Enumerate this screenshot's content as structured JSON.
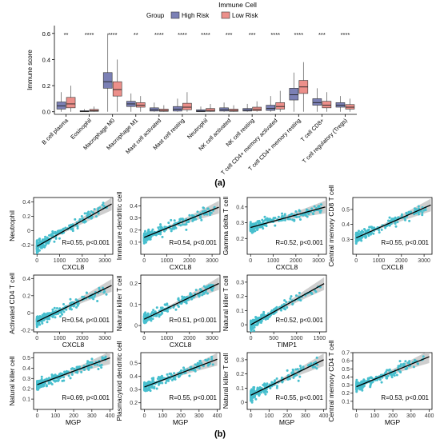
{
  "colors": {
    "high_risk": "#7b80b5",
    "low_risk": "#ec8f8a",
    "scatter": "#47bfce",
    "fit_line": "#000000",
    "ci_band": "#bdbdbd"
  },
  "panel_labels": {
    "a": "(a)",
    "b": "(b)"
  },
  "chart_data": [
    {
      "type": "box",
      "title": "Immune Cell",
      "legend": {
        "title": "Group",
        "entries": [
          "High Risk",
          "Low Risk"
        ],
        "placement": "top-center"
      },
      "ylabel": "Immune score",
      "ylim": [
        -0.02,
        0.66
      ],
      "yticks": [
        "0.0",
        "0.2",
        "0.4",
        "0.6"
      ],
      "ytick_values": [
        0.0,
        0.2,
        0.4,
        0.6
      ],
      "categories": [
        "B cell plasma",
        "Eosinophil",
        "Macrophage M0",
        "Macrophage M1",
        "Mast cell activated",
        "Mast cell resting",
        "Neutrophil",
        "NK cell activated",
        "NK cell resting",
        "T cell CD4+ memory activated",
        "T cell CD4+ memory resting",
        "T cell CD8+",
        "T cell regulatory (Tregs)"
      ],
      "significance": [
        "**",
        "****",
        "****",
        "**",
        "****",
        "****",
        "****",
        "***",
        "***",
        "****",
        "****",
        "***",
        "****"
      ],
      "series": [
        {
          "name": "High Risk",
          "boxes": [
            {
              "min": 0,
              "q1": 0.02,
              "median": 0.045,
              "q3": 0.075,
              "max": 0.15
            },
            {
              "min": 0,
              "q1": 0,
              "median": 0.003,
              "q3": 0.008,
              "max": 0.02
            },
            {
              "min": 0,
              "q1": 0.18,
              "median": 0.23,
              "q3": 0.3,
              "max": 0.6
            },
            {
              "min": 0,
              "q1": 0.04,
              "median": 0.06,
              "q3": 0.08,
              "max": 0.14
            },
            {
              "min": 0,
              "q1": 0.005,
              "median": 0.015,
              "q3": 0.03,
              "max": 0.07
            },
            {
              "min": 0,
              "q1": 0.005,
              "median": 0.02,
              "q3": 0.04,
              "max": 0.1
            },
            {
              "min": 0,
              "q1": 0,
              "median": 0.005,
              "q3": 0.015,
              "max": 0.04
            },
            {
              "min": 0,
              "q1": 0.005,
              "median": 0.015,
              "q3": 0.03,
              "max": 0.07
            },
            {
              "min": 0,
              "q1": 0.005,
              "median": 0.012,
              "q3": 0.025,
              "max": 0.06
            },
            {
              "min": 0,
              "q1": 0.01,
              "median": 0.025,
              "q3": 0.05,
              "max": 0.12
            },
            {
              "min": 0,
              "q1": 0.09,
              "median": 0.13,
              "q3": 0.18,
              "max": 0.3
            },
            {
              "min": 0,
              "q1": 0.05,
              "median": 0.07,
              "q3": 0.1,
              "max": 0.18
            },
            {
              "min": 0,
              "q1": 0.035,
              "median": 0.05,
              "q3": 0.07,
              "max": 0.12
            }
          ]
        },
        {
          "name": "Low Risk",
          "boxes": [
            {
              "min": 0,
              "q1": 0.03,
              "median": 0.06,
              "q3": 0.11,
              "max": 0.2
            },
            {
              "min": 0,
              "q1": 0.003,
              "median": 0.008,
              "q3": 0.018,
              "max": 0.04
            },
            {
              "min": 0,
              "q1": 0.12,
              "median": 0.17,
              "q3": 0.23,
              "max": 0.4
            },
            {
              "min": 0,
              "q1": 0.035,
              "median": 0.05,
              "q3": 0.07,
              "max": 0.12
            },
            {
              "min": 0,
              "q1": 0.003,
              "median": 0.01,
              "q3": 0.02,
              "max": 0.05
            },
            {
              "min": 0,
              "q1": 0.015,
              "median": 0.035,
              "q3": 0.065,
              "max": 0.15
            },
            {
              "min": 0,
              "q1": 0.003,
              "median": 0.01,
              "q3": 0.025,
              "max": 0.06
            },
            {
              "min": 0,
              "q1": 0.003,
              "median": 0.01,
              "q3": 0.02,
              "max": 0.05
            },
            {
              "min": 0,
              "q1": 0.008,
              "median": 0.018,
              "q3": 0.035,
              "max": 0.08
            },
            {
              "min": 0,
              "q1": 0.02,
              "median": 0.04,
              "q3": 0.07,
              "max": 0.16
            },
            {
              "min": 0,
              "q1": 0.14,
              "median": 0.19,
              "q3": 0.24,
              "max": 0.38
            },
            {
              "min": 0,
              "q1": 0.03,
              "median": 0.05,
              "q3": 0.08,
              "max": 0.15
            },
            {
              "min": 0,
              "q1": 0.02,
              "median": 0.035,
              "q3": 0.055,
              "max": 0.1
            }
          ]
        }
      ]
    },
    {
      "type": "scatter",
      "xlabel": "CXCL8",
      "ylabel": "Neutrophil",
      "annotation": "R=0.55, p<0.001",
      "xlim": [
        -150,
        3350
      ],
      "xticks": [
        0,
        1000,
        2000,
        3000
      ],
      "ylim": [
        -0.33,
        0.46
      ],
      "yticks": [
        -0.2,
        0.0,
        0.2,
        0.4
      ],
      "fit": {
        "x": [
          0,
          3300
        ],
        "y": [
          -0.22,
          0.37
        ]
      }
    },
    {
      "type": "scatter",
      "xlabel": "CXCL8",
      "ylabel": "Immature dendritic cell",
      "annotation": "R=0.54, p<0.001",
      "xlim": [
        -150,
        3350
      ],
      "xticks": [
        0,
        1000,
        2000,
        3000
      ],
      "ylim": [
        0.0,
        0.47
      ],
      "yticks": [
        0.1,
        0.2,
        0.3,
        0.4
      ],
      "fit": {
        "x": [
          0,
          3300
        ],
        "y": [
          0.14,
          0.39
        ]
      }
    },
    {
      "type": "scatter",
      "xlabel": "CXCL8",
      "ylabel": "Gamma delta T cell",
      "annotation": "R=0.52, p<0.001",
      "xlim": [
        -150,
        3350
      ],
      "xticks": [
        0,
        1000,
        2000,
        3000
      ],
      "ylim": [
        0.1,
        0.46
      ],
      "yticks": [
        0.2,
        0.3,
        0.4
      ],
      "fit": {
        "x": [
          0,
          3300
        ],
        "y": [
          0.27,
          0.4
        ]
      }
    },
    {
      "type": "scatter",
      "xlabel": "CXCL8",
      "ylabel": "Central memory CD8 T cell",
      "annotation": "R=0.55, p<0.001",
      "xlim": [
        -150,
        3350
      ],
      "xticks": [
        0,
        1000,
        2000,
        3000
      ],
      "ylim": [
        0.2,
        0.58
      ],
      "yticks": [
        0.3,
        0.4,
        0.5
      ],
      "fit": {
        "x": [
          0,
          3300
        ],
        "y": [
          0.31,
          0.53
        ]
      }
    },
    {
      "type": "scatter",
      "xlabel": "CXCL8",
      "ylabel": "Activated CD4 T cell",
      "annotation": "R=0.54, p<0.001",
      "xlim": [
        -150,
        3350
      ],
      "xticks": [
        0,
        1000,
        2000,
        3000
      ],
      "ylim": [
        -0.22,
        0.44
      ],
      "yticks": [
        -0.2,
        0.0,
        0.2,
        0.4
      ],
      "fit": {
        "x": [
          0,
          3300
        ],
        "y": [
          -0.1,
          0.32
        ]
      }
    },
    {
      "type": "scatter",
      "xlabel": "CXCL8",
      "ylabel": "Natural killer T cell",
      "annotation": "R=0.51, p<0.001",
      "xlim": [
        -150,
        3350
      ],
      "xticks": [
        0,
        1000,
        2000,
        3000
      ],
      "ylim": [
        -0.03,
        0.24
      ],
      "yticks": [
        0.0,
        0.1,
        0.2
      ],
      "fit": {
        "x": [
          0,
          3300
        ],
        "y": [
          0.03,
          0.2
        ]
      }
    },
    {
      "type": "scatter",
      "xlabel": "TIMP1",
      "ylabel": "Natural killer T cell",
      "annotation": "R=0.52, p<0.001",
      "xlim": [
        -80,
        1650
      ],
      "xticks": [
        0,
        500,
        1000,
        1500
      ],
      "ylim": [
        -0.05,
        0.35
      ],
      "yticks": [
        0.0,
        0.1,
        0.2,
        0.3
      ],
      "fit": {
        "x": [
          0,
          1600
        ],
        "y": [
          0.0,
          0.29
        ]
      }
    },
    {
      "type": "scatter",
      "xlabel": "MGP",
      "ylabel": "Natural killer cell",
      "annotation": "R=0.69, p<0.001",
      "xlim": [
        -20,
        415
      ],
      "xticks": [
        0,
        100,
        200,
        300,
        400
      ],
      "ylim": [
        0.0,
        0.55
      ],
      "yticks": [
        0.1,
        0.2,
        0.3,
        0.4,
        0.5
      ],
      "fit": {
        "x": [
          0,
          400
        ],
        "y": [
          0.24,
          0.5
        ]
      }
    },
    {
      "type": "scatter",
      "xlabel": "MGP",
      "ylabel": "Plasmacytoid dendritic cell",
      "annotation": "R=0.55, p<0.001",
      "xlim": [
        -20,
        415
      ],
      "xticks": [
        0,
        100,
        200,
        300,
        400
      ],
      "ylim": [
        0.15,
        0.58
      ],
      "yticks": [
        0.2,
        0.3,
        0.4,
        0.5
      ],
      "fit": {
        "x": [
          0,
          400
        ],
        "y": [
          0.32,
          0.53
        ]
      }
    },
    {
      "type": "scatter",
      "xlabel": "MGP",
      "ylabel": "Natural killer T cell",
      "annotation": "R=0.55, p<0.001",
      "xlim": [
        -20,
        415
      ],
      "xticks": [
        0,
        100,
        200,
        300,
        400
      ],
      "ylim": [
        -0.05,
        0.35
      ],
      "yticks": [
        0.0,
        0.1,
        0.2,
        0.3
      ],
      "fit": {
        "x": [
          0,
          400
        ],
        "y": [
          0.05,
          0.3
        ]
      }
    },
    {
      "type": "scatter",
      "xlabel": "MGP",
      "ylabel": "Central memory CD4 T cell",
      "annotation": "R=0.53, p<0.001",
      "xlim": [
        -20,
        415
      ],
      "xticks": [
        0,
        100,
        200,
        300,
        400
      ],
      "ylim": [
        0.0,
        0.7
      ],
      "yticks": [
        0.1,
        0.2,
        0.3,
        0.4,
        0.5,
        0.6,
        0.7
      ],
      "fit": {
        "x": [
          0,
          400
        ],
        "y": [
          0.28,
          0.65
        ]
      }
    }
  ]
}
